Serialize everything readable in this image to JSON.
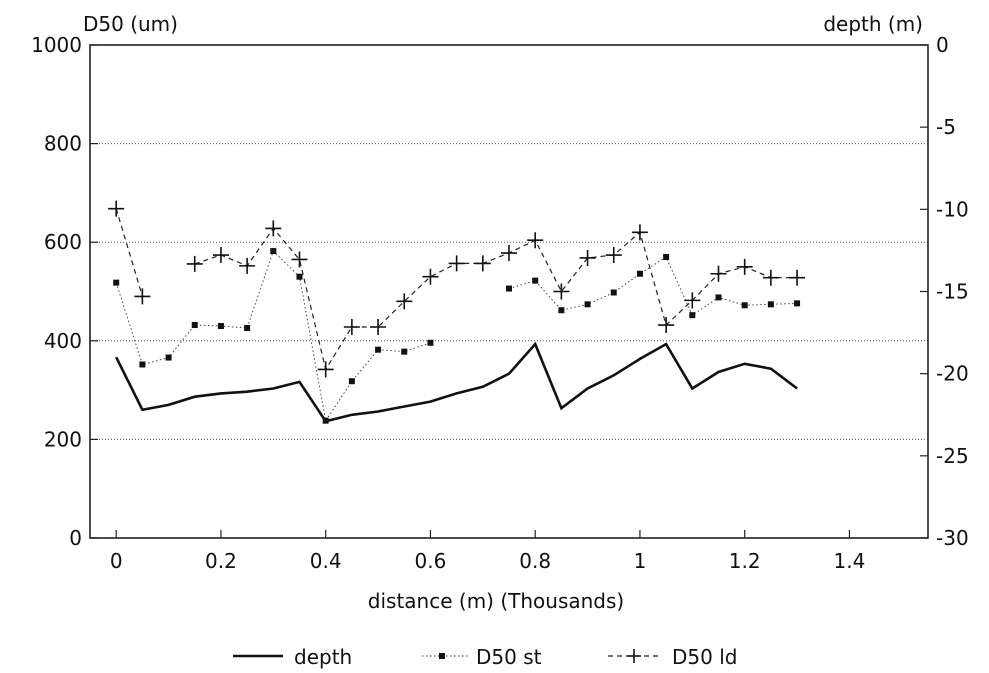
{
  "chart_data": {
    "type": "line",
    "title": "",
    "xlabel": "distance (m) (Thousands)",
    "y_left_label": "D50 (um)",
    "y_right_label": "depth (m)",
    "xlim": [
      -0.05,
      1.55
    ],
    "ylim_left": [
      0,
      1000
    ],
    "ylim_right": [
      -30,
      0
    ],
    "x_ticks": [
      "0",
      "0.2",
      "0.4",
      "0.6",
      "0.8",
      "1",
      "1.2",
      "1.4"
    ],
    "x_tick_values": [
      0,
      0.2,
      0.4,
      0.6,
      0.8,
      1.0,
      1.2,
      1.4
    ],
    "y_left_ticks": [
      "0",
      "200",
      "400",
      "600",
      "800",
      "1000"
    ],
    "y_left_tick_values": [
      0,
      200,
      400,
      600,
      800,
      1000
    ],
    "y_right_ticks": [
      "0",
      "-5",
      "-10",
      "-15",
      "-20",
      "-25",
      "-30"
    ],
    "y_right_tick_values": [
      0,
      -5,
      -10,
      -15,
      -20,
      -25,
      -30
    ],
    "grid": "horizontal dotted",
    "legend_position": "bottom",
    "x": [
      0,
      0.05,
      0.1,
      0.15,
      0.2,
      0.25,
      0.3,
      0.35,
      0.4,
      0.45,
      0.5,
      0.55,
      0.6,
      0.65,
      0.7,
      0.75,
      0.8,
      0.85,
      0.9,
      0.95,
      1.0,
      1.05,
      1.1,
      1.15,
      1.2,
      1.25,
      1.3
    ],
    "series": [
      {
        "name": "depth",
        "axis": "right",
        "style": "solid",
        "values": [
          -19.0,
          -22.2,
          -21.9,
          -21.4,
          -21.2,
          -21.1,
          -20.9,
          -20.5,
          -22.9,
          -22.5,
          -22.3,
          -22.0,
          -21.7,
          -21.2,
          -20.8,
          -20.0,
          -18.2,
          -22.1,
          -20.9,
          -20.1,
          -19.1,
          -18.2,
          -20.9,
          -19.9,
          -19.4,
          -19.7,
          -20.9
        ]
      },
      {
        "name": "D50 st",
        "axis": "left",
        "style": "dotted-square",
        "values": [
          518,
          352,
          366,
          432,
          430,
          426,
          582,
          530,
          238,
          318,
          382,
          378,
          396,
          null,
          null,
          506,
          522,
          462,
          474,
          498,
          536,
          570,
          452,
          488,
          472,
          474,
          476
        ]
      },
      {
        "name": "D50 ld",
        "axis": "left",
        "style": "dashed-plus",
        "values": [
          668,
          490,
          null,
          556,
          574,
          552,
          628,
          565,
          342,
          428,
          428,
          480,
          530,
          557,
          557,
          578,
          604,
          500,
          568,
          574,
          620,
          432,
          482,
          536,
          550,
          528,
          528
        ]
      }
    ]
  }
}
